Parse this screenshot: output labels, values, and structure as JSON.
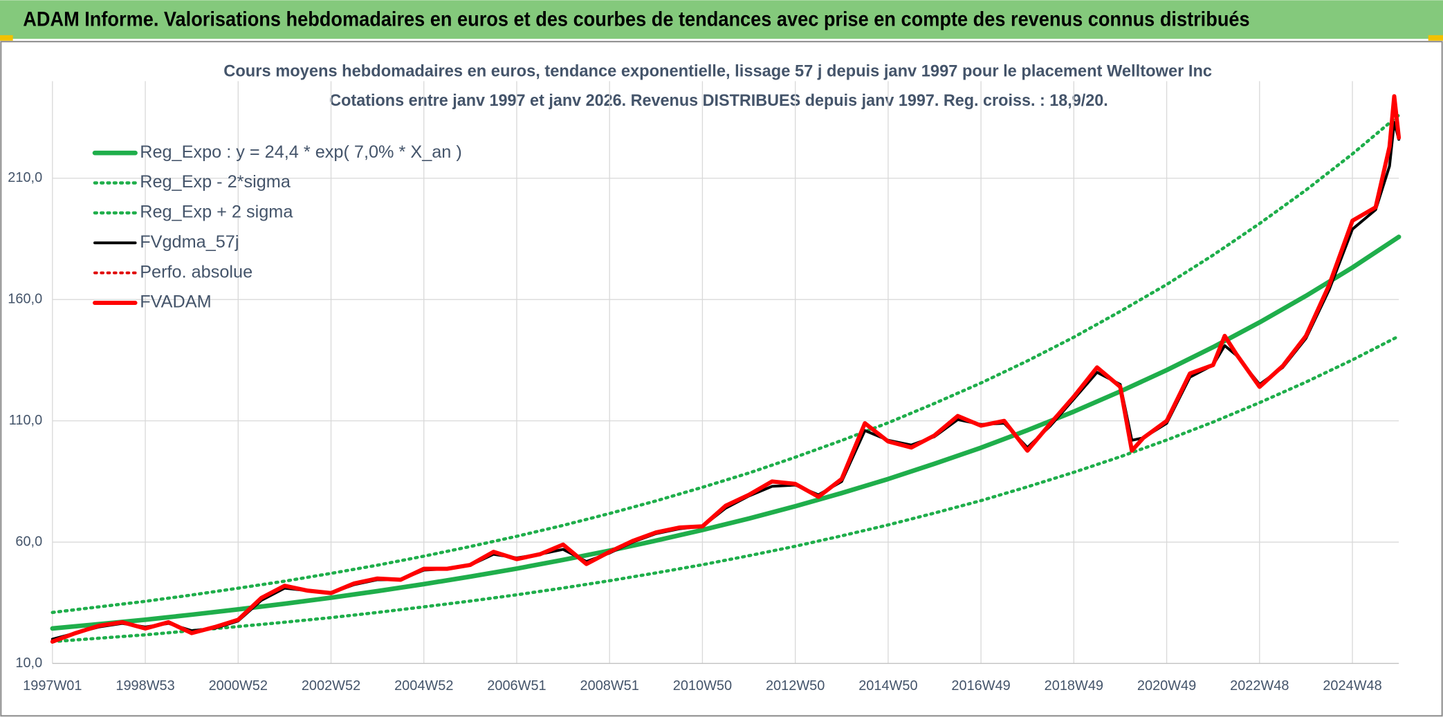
{
  "header": {
    "title": "ADAM Informe. Valorisations hebdomadaires en euros et des courbes de tendances avec prise en compte des revenus connus distribués"
  },
  "chart_data": {
    "type": "line",
    "title": "Cours moyens hebdomadaires en euros, tendance exponentielle, lissage 57 j depuis janv 1997 pour le placement Welltower Inc",
    "subtitle": "Cotations entre janv 1997 et janv 2026. Revenus DISTRIBUES depuis janv 1997. Reg. croiss. : 18,9/20.",
    "xlim": [
      1997,
      2026
    ],
    "xticks": [
      {
        "value": 1997,
        "label": "1997W01"
      },
      {
        "value": 1999,
        "label": "1998W53"
      },
      {
        "value": 2001,
        "label": "2000W52"
      },
      {
        "value": 2003,
        "label": "2002W52"
      },
      {
        "value": 2005,
        "label": "2004W52"
      },
      {
        "value": 2007,
        "label": "2006W51"
      },
      {
        "value": 2009,
        "label": "2008W51"
      },
      {
        "value": 2011,
        "label": "2010W50"
      },
      {
        "value": 2013,
        "label": "2012W50"
      },
      {
        "value": 2015,
        "label": "2014W50"
      },
      {
        "value": 2017,
        "label": "2016W49"
      },
      {
        "value": 2019,
        "label": "2018W49"
      },
      {
        "value": 2021,
        "label": "2020W49"
      },
      {
        "value": 2023,
        "label": "2022W48"
      },
      {
        "value": 2025,
        "label": "2024W48"
      }
    ],
    "ylim": [
      10,
      250
    ],
    "yticks": [
      {
        "value": 10,
        "label": "10,0"
      },
      {
        "value": 60,
        "label": "60,0"
      },
      {
        "value": 110,
        "label": "110,0"
      },
      {
        "value": 160,
        "label": "160,0"
      },
      {
        "value": 210,
        "label": "210,0"
      }
    ],
    "grid": true,
    "legend": "upper left",
    "series": [
      {
        "name": "Reg_Expo : y = 24,4 * exp( 7,0% *  X_an )",
        "color": "#1fae4b",
        "style": "solid",
        "width": 5,
        "x": [
          1997,
          1998,
          1999,
          2000,
          2001,
          2002,
          2003,
          2004,
          2005,
          2006,
          2007,
          2008,
          2009,
          2010,
          2011,
          2012,
          2013,
          2014,
          2015,
          2016,
          2017,
          2018,
          2019,
          2020,
          2021,
          2022,
          2023,
          2024,
          2025,
          2026
        ],
        "values": [
          24.4,
          26.2,
          28.0,
          30.1,
          32.3,
          34.6,
          37.1,
          39.8,
          42.7,
          45.8,
          49.1,
          52.7,
          56.5,
          60.6,
          65.0,
          69.7,
          74.8,
          80.2,
          86.0,
          92.3,
          98.9,
          106.1,
          113.8,
          122.1,
          130.9,
          140.4,
          150.6,
          161.5,
          173.2,
          185.8
        ]
      },
      {
        "name": "Reg_Exp - 2*sigma",
        "color": "#1fae4b",
        "style": "dotted",
        "width": 3.5,
        "x": [
          1997,
          1998,
          1999,
          2000,
          2001,
          2002,
          2003,
          2004,
          2005,
          2006,
          2007,
          2008,
          2009,
          2010,
          2011,
          2012,
          2013,
          2014,
          2015,
          2016,
          2017,
          2018,
          2019,
          2020,
          2021,
          2022,
          2023,
          2024,
          2025,
          2026
        ],
        "values": [
          19.0,
          20.4,
          21.8,
          23.5,
          25.2,
          27.0,
          28.9,
          31.0,
          33.3,
          35.7,
          38.3,
          41.1,
          44.1,
          47.3,
          50.7,
          54.4,
          58.3,
          62.6,
          67.1,
          72.0,
          77.1,
          82.8,
          88.8,
          95.2,
          102.1,
          109.5,
          117.5,
          126.0,
          135.1,
          144.9
        ]
      },
      {
        "name": "Reg_Exp + 2 sigma",
        "color": "#1fae4b",
        "style": "dotted",
        "width": 3.5,
        "x": [
          1997,
          1998,
          1999,
          2000,
          2001,
          2002,
          2003,
          2004,
          2005,
          2006,
          2007,
          2008,
          2009,
          2010,
          2011,
          2012,
          2013,
          2014,
          2015,
          2016,
          2017,
          2018,
          2019,
          2020,
          2021,
          2022,
          2023,
          2024,
          2025,
          2026
        ],
        "values": [
          31.0,
          33.3,
          35.6,
          38.2,
          41.0,
          43.9,
          47.1,
          50.5,
          54.2,
          58.2,
          62.4,
          66.9,
          71.8,
          77.0,
          82.6,
          88.5,
          95.0,
          101.9,
          109.2,
          117.2,
          125.6,
          134.7,
          144.5,
          155.1,
          166.2,
          178.3,
          191.3,
          205.1,
          220.0,
          236.0
        ]
      },
      {
        "name": "FVgdma_57j",
        "color": "#000000",
        "style": "solid",
        "width": 3,
        "x": [
          1997,
          1997.5,
          1998,
          1998.5,
          1999,
          1999.5,
          2000,
          2000.5,
          2001,
          2001.5,
          2002,
          2002.5,
          2003,
          2003.5,
          2004,
          2004.5,
          2005,
          2005.5,
          2006,
          2006.5,
          2007,
          2007.5,
          2008,
          2008.5,
          2009,
          2009.5,
          2010,
          2010.5,
          2011,
          2011.5,
          2012,
          2012.5,
          2013,
          2013.5,
          2014,
          2014.5,
          2015,
          2015.5,
          2016,
          2016.5,
          2017,
          2017.5,
          2018,
          2018.5,
          2019,
          2019.5,
          2020,
          2020.25,
          2020.5,
          2021,
          2021.5,
          2022,
          2022.25,
          2022.5,
          2023,
          2023.5,
          2024,
          2024.5,
          2025,
          2025.5,
          2025.8,
          2025.9,
          2026
        ],
        "values": [
          20,
          22.5,
          25,
          26.5,
          25,
          26.5,
          23.5,
          24.5,
          27.5,
          36,
          41,
          40,
          39,
          42.5,
          44.5,
          44.5,
          48.5,
          49,
          50.5,
          55,
          53.5,
          55,
          57,
          52,
          55.5,
          60,
          63.5,
          65.5,
          66.5,
          74,
          79,
          83,
          83.5,
          79.5,
          85,
          106,
          102,
          100,
          103.5,
          110.5,
          108.5,
          109,
          99,
          108,
          119,
          130,
          125,
          102,
          103,
          109,
          128,
          133,
          141,
          137,
          125,
          132,
          144,
          164,
          189,
          197,
          215,
          233,
          226
        ]
      },
      {
        "name": "Perfo. absolue",
        "color": "#e00000",
        "style": "dotted",
        "width": 3
      },
      {
        "name": "FVADAM",
        "color": "#ff0000",
        "style": "solid",
        "width": 4.5,
        "x": [
          1997,
          1997.5,
          1998,
          1998.5,
          1999,
          1999.5,
          2000,
          2000.5,
          2001,
          2001.5,
          2002,
          2002.5,
          2003,
          2003.5,
          2004,
          2004.5,
          2005,
          2005.5,
          2006,
          2006.5,
          2007,
          2007.5,
          2008,
          2008.5,
          2009,
          2009.5,
          2010,
          2010.5,
          2011,
          2011.5,
          2012,
          2012.5,
          2013,
          2013.5,
          2014,
          2014.5,
          2015,
          2015.5,
          2016,
          2016.5,
          2017,
          2017.5,
          2018,
          2018.5,
          2019,
          2019.5,
          2020,
          2020.25,
          2020.5,
          2021,
          2021.5,
          2022,
          2022.25,
          2022.5,
          2023,
          2023.5,
          2024,
          2024.5,
          2025,
          2025.5,
          2025.8,
          2025.9,
          2026
        ],
        "values": [
          19,
          22.5,
          25.5,
          27,
          24.4,
          27,
          22.5,
          25,
          28,
          37,
          42,
          40,
          39,
          43,
          45,
          44.5,
          49,
          49,
          50.6,
          56,
          53,
          55,
          59,
          51,
          56,
          60.5,
          64,
          66,
          66.5,
          75,
          79.5,
          85,
          84,
          78.7,
          86,
          109,
          101.5,
          99,
          104,
          112,
          108,
          110,
          97.7,
          109,
          120,
          132,
          124,
          97.7,
          103,
          110,
          129.5,
          133,
          145,
          137.5,
          124,
          132.6,
          145,
          166,
          192.5,
          198,
          223,
          243.8,
          226.7
        ]
      }
    ]
  }
}
